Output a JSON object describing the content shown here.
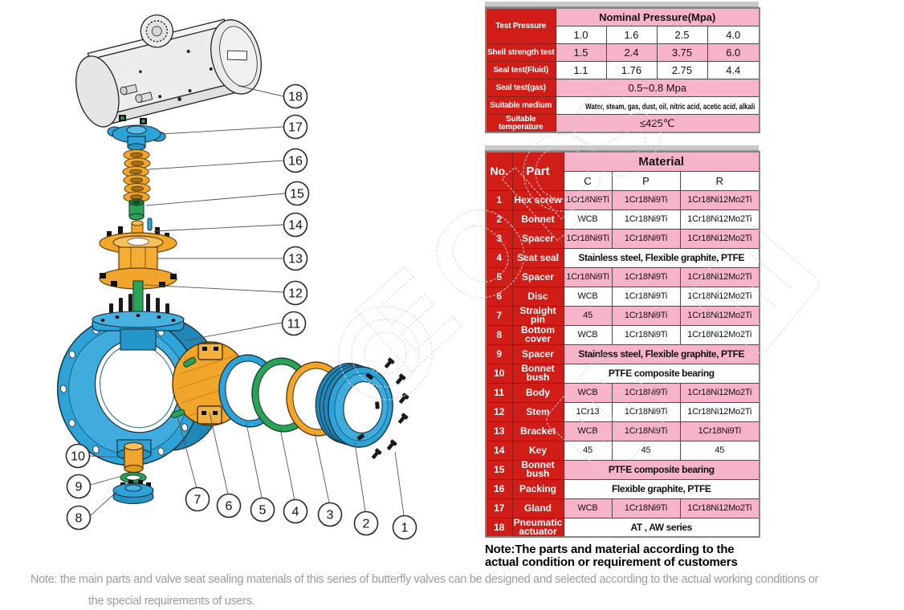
{
  "pressure_table": {
    "corner_label": "Test Pressure",
    "nominal_header": "Nominal Pressure(Mpa)",
    "nominal_values": [
      "1.0",
      "1.6",
      "2.5",
      "4.0"
    ],
    "rows": [
      {
        "label": "Shell strength test",
        "values": [
          "1.5",
          "2.4",
          "3.75",
          "6.0"
        ]
      },
      {
        "label": "Seal test(Fluid)",
        "values": [
          "1.1",
          "1.76",
          "2.75",
          "4.4"
        ]
      },
      {
        "label": "Seal test(gas)",
        "span": "0.5~0.8 Mpa"
      },
      {
        "label": "Suitable medium",
        "span": "Water, steam, gas, dust, oil, nitric acid, acetic acid, alkali"
      },
      {
        "label": "Suitable temperature",
        "span": "≤425℃"
      }
    ]
  },
  "material_table": {
    "no_header": "No.",
    "part_header": "Part",
    "material_header": "Material",
    "grade_headers": [
      "C",
      "P",
      "R"
    ],
    "rows": [
      {
        "no": "1",
        "part": "Hex screw",
        "cells": [
          "1Cr18Ni9Ti",
          "1Cr18Ni9Ti",
          "1Cr18Ni12Mo2Ti"
        ]
      },
      {
        "no": "2",
        "part": "Bonnet",
        "cells": [
          "WCB",
          "1Cr18Ni9Ti",
          "1Cr18Ni12Mo2Ti"
        ]
      },
      {
        "no": "3",
        "part": "Spacer",
        "cells": [
          "1Cr18Ni9Ti",
          "1Cr18Ni9Ti",
          "1Cr18Ni12Mo2Ti"
        ]
      },
      {
        "no": "4",
        "part": "Seat seal",
        "span": "Stainless steel, Flexible graphite, PTFE"
      },
      {
        "no": "5",
        "part": "Spacer",
        "cells": [
          "1Cr18Ni9Ti",
          "1Cr18Ni9Ti",
          "1Cr18Ni12Mo2Ti"
        ]
      },
      {
        "no": "6",
        "part": "Disc",
        "cells": [
          "WCB",
          "1Cr18Ni9Ti",
          "1Cr18Ni12Mo2Ti"
        ]
      },
      {
        "no": "7",
        "part": "Straight pin",
        "cells": [
          "45",
          "1Cr18Ni9Ti",
          "1Cr18Ni12Mo2Ti"
        ]
      },
      {
        "no": "8",
        "part": "Bottom cover",
        "cells": [
          "WCB",
          "1Cr18Ni9Ti",
          "1Cr18Ni12Mo2Ti"
        ]
      },
      {
        "no": "9",
        "part": "Spacer",
        "span": "Stainless steel, Flexible graphite, PTFE"
      },
      {
        "no": "10",
        "part": "Bonnet bush",
        "span": "PTFE composite bearing"
      },
      {
        "no": "11",
        "part": "Body",
        "cells": [
          "WCB",
          "1Cr18Ni9Ti",
          "1Cr18Ni12Mo2Ti"
        ]
      },
      {
        "no": "12",
        "part": "Stem",
        "cells": [
          "1Cr13",
          "1Cr18Ni9Ti",
          "1Cr18Ni12Mo2Ti"
        ]
      },
      {
        "no": "13",
        "part": "Bracket",
        "cells": [
          "WCB",
          "1Cr18Ni9Ti",
          "1Cr18Ni9Ti"
        ]
      },
      {
        "no": "14",
        "part": "Key",
        "cells": [
          "45",
          "45",
          "45"
        ]
      },
      {
        "no": "15",
        "part": "Bonnet bush",
        "span": "PTFE composite bearing"
      },
      {
        "no": "16",
        "part": "Packing",
        "span": "Flexible graphite, PTFE"
      },
      {
        "no": "17",
        "part": "Gland",
        "cells": [
          "WCB",
          "1Cr18Ni9Ti",
          "1Cr18Ni12Mo2Ti"
        ]
      },
      {
        "no": "18",
        "part": "Pneumatic actuator",
        "span": "AT , AW series"
      }
    ],
    "note_line1": "Note:The parts and material according to the",
    "note_line2": "actual condition or requirement of customers"
  },
  "diagram": {
    "callouts": [
      "1",
      "2",
      "3",
      "4",
      "5",
      "6",
      "7",
      "8",
      "9",
      "10",
      "11",
      "12",
      "13",
      "14",
      "15",
      "16",
      "17",
      "18"
    ]
  },
  "watermark": {
    "letters": "EOLS"
  },
  "footer_note": {
    "line1": "Note: the main parts and valve seat sealing materials of this series of butterfly valves can be designed and selected according to the actual working conditions or",
    "line2": "the special requirements of users."
  },
  "colors": {
    "red": "#d01d18",
    "pink": "#f7b3c9",
    "blue": "#2ea3d8",
    "yellow": "#f2a52b",
    "green": "#2aa257",
    "gray_strip": "#c9c9c9",
    "note_gray": "#9b9b9b"
  }
}
